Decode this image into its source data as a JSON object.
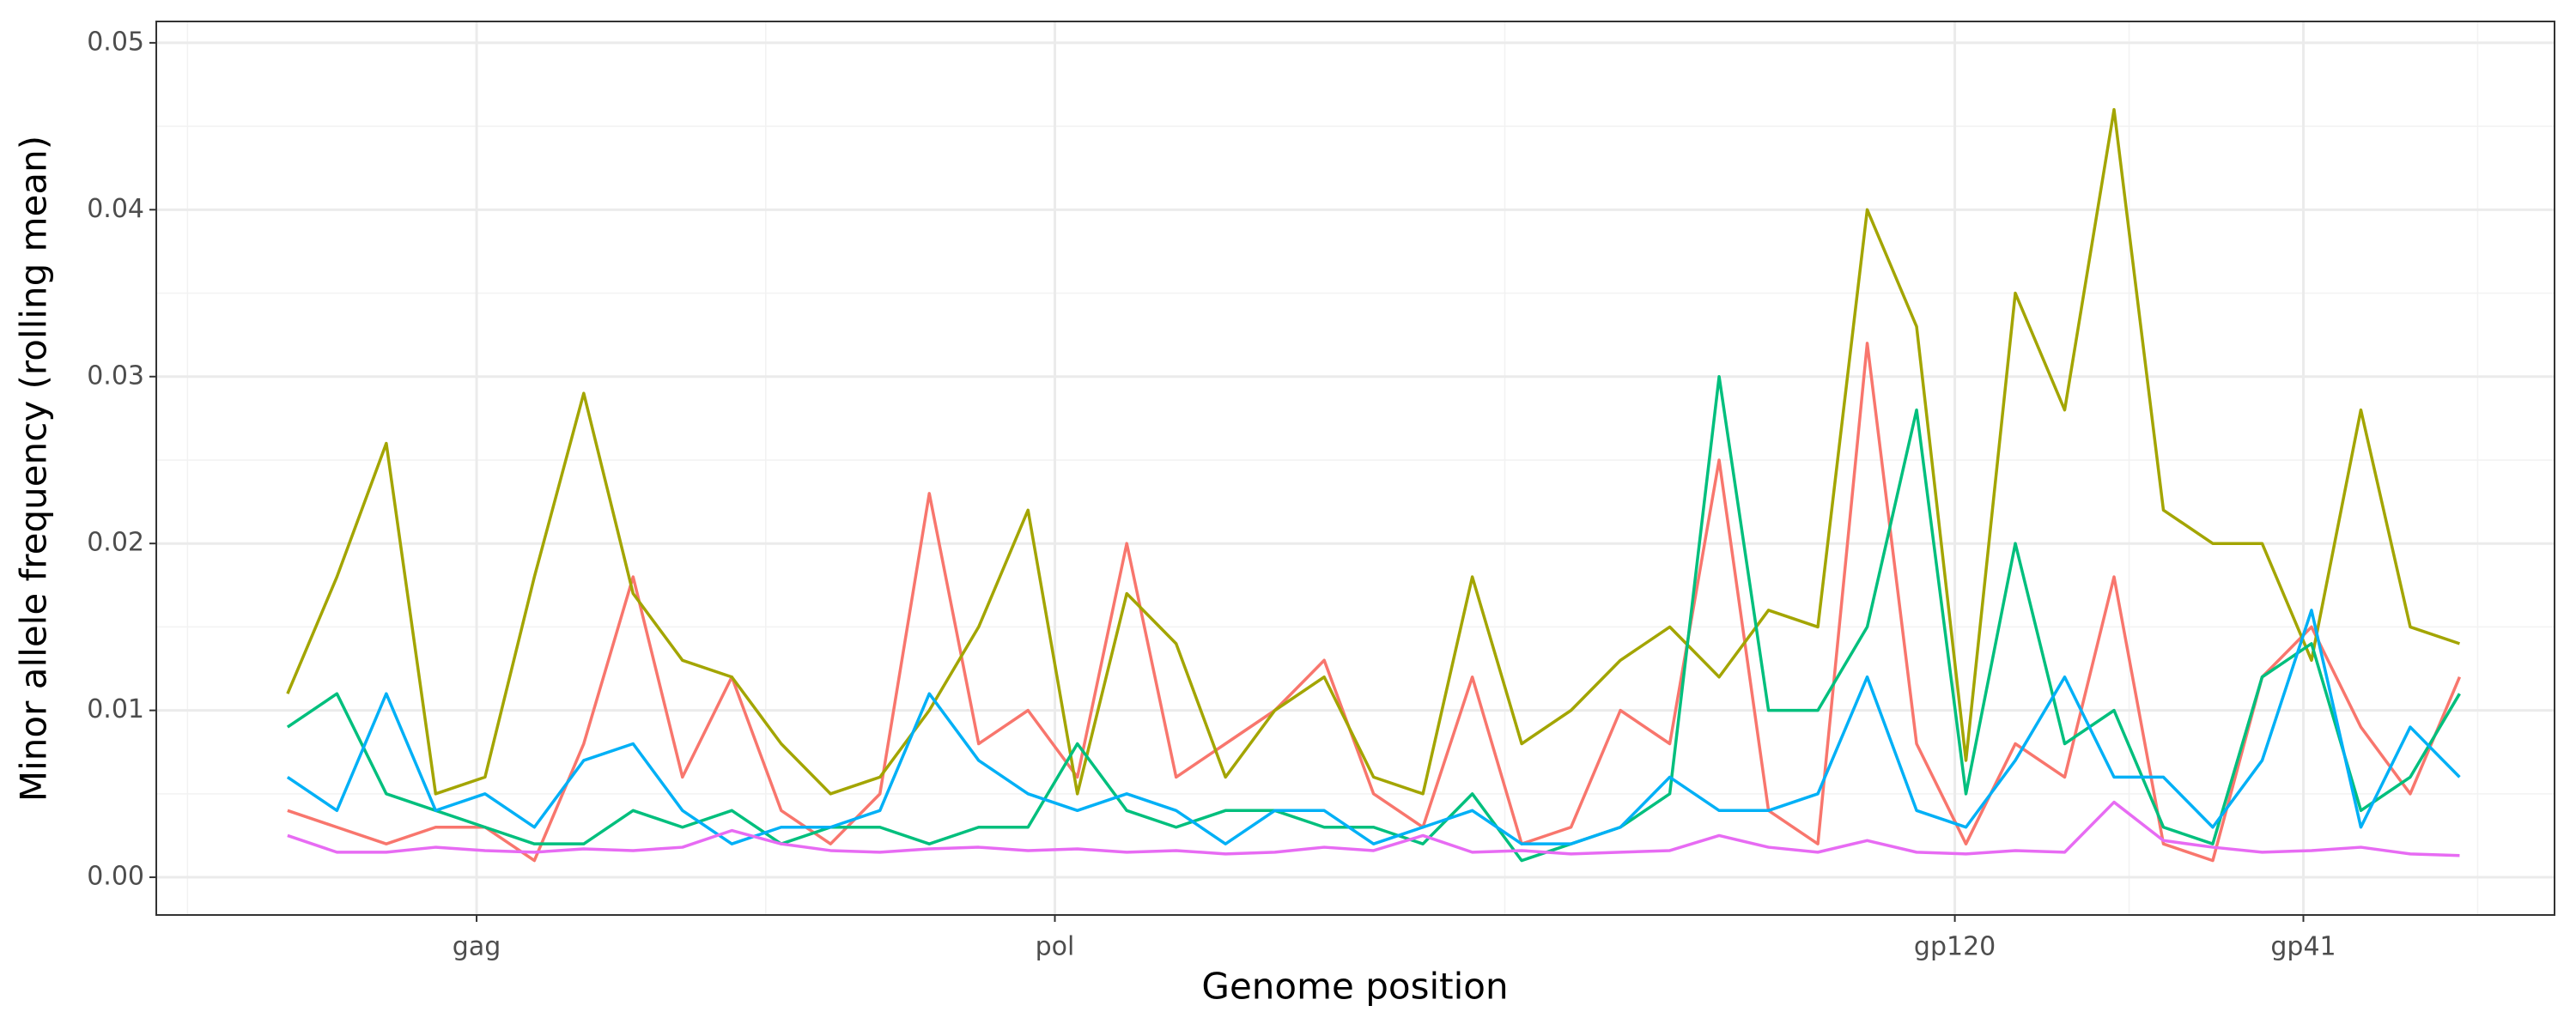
{
  "chart_data": {
    "type": "line",
    "xlabel": "Genome position",
    "ylabel": "Minor allele frequency (rolling mean)",
    "xlim": [
      360,
      9202
    ],
    "ylim": [
      -0.00226,
      0.05128
    ],
    "xticks": [
      {
        "value": 1541,
        "label": "gag"
      },
      {
        "value": 3673,
        "label": "pol"
      },
      {
        "value": 6991,
        "label": "gp120"
      },
      {
        "value": 8276,
        "label": "gp41"
      }
    ],
    "yticks": [
      {
        "value": 0,
        "label": "0.00"
      },
      {
        "value": 0.01,
        "label": "0.01"
      },
      {
        "value": 0.02,
        "label": "0.02"
      },
      {
        "value": 0.03,
        "label": "0.03"
      },
      {
        "value": 0.04,
        "label": "0.04"
      },
      {
        "value": 0.05,
        "label": "0.05"
      }
    ],
    "grid": true,
    "x": [
      844,
      1026,
      1208,
      1390,
      1572,
      1754,
      1936,
      2118,
      2300,
      2482,
      2664,
      2846,
      3028,
      3210,
      3392,
      3574,
      3756,
      3938,
      4120,
      4302,
      4484,
      4666,
      4848,
      5030,
      5212,
      5394,
      5576,
      5758,
      5940,
      6122,
      6304,
      6486,
      6668,
      6850,
      7032,
      7214,
      7396,
      7578,
      7760,
      7942,
      8124,
      8306,
      8488,
      8670,
      8852
    ],
    "series": [
      {
        "color": "#F8766D",
        "values": [
          0.004,
          0.003,
          0.002,
          0.003,
          0.003,
          0.001,
          0.008,
          0.018,
          0.006,
          0.012,
          0.004,
          0.002,
          0.005,
          0.023,
          0.008,
          0.01,
          0.006,
          0.02,
          0.006,
          0.008,
          0.01,
          0.013,
          0.005,
          0.003,
          0.012,
          0.002,
          0.003,
          0.01,
          0.008,
          0.025,
          0.004,
          0.002,
          0.032,
          0.008,
          0.002,
          0.008,
          0.006,
          0.018,
          0.002,
          0.001,
          0.012,
          0.015,
          0.009,
          0.005,
          0.012
        ]
      },
      {
        "color": "#A3A500",
        "values": [
          0.011,
          0.018,
          0.026,
          0.005,
          0.006,
          0.018,
          0.029,
          0.017,
          0.013,
          0.012,
          0.008,
          0.005,
          0.006,
          0.01,
          0.015,
          0.022,
          0.005,
          0.017,
          0.014,
          0.006,
          0.01,
          0.012,
          0.006,
          0.005,
          0.018,
          0.008,
          0.01,
          0.013,
          0.015,
          0.012,
          0.016,
          0.015,
          0.04,
          0.033,
          0.007,
          0.035,
          0.028,
          0.046,
          0.022,
          0.02,
          0.02,
          0.013,
          0.028,
          0.015,
          0.014
        ]
      },
      {
        "color": "#00BF7D",
        "values": [
          0.009,
          0.011,
          0.005,
          0.004,
          0.003,
          0.002,
          0.002,
          0.004,
          0.003,
          0.004,
          0.002,
          0.003,
          0.003,
          0.002,
          0.003,
          0.003,
          0.008,
          0.004,
          0.003,
          0.004,
          0.004,
          0.003,
          0.003,
          0.002,
          0.005,
          0.001,
          0.002,
          0.003,
          0.005,
          0.03,
          0.01,
          0.01,
          0.015,
          0.028,
          0.005,
          0.02,
          0.008,
          0.01,
          0.003,
          0.002,
          0.012,
          0.014,
          0.004,
          0.006,
          0.011
        ]
      },
      {
        "color": "#00B0F6",
        "values": [
          0.006,
          0.004,
          0.011,
          0.004,
          0.005,
          0.003,
          0.007,
          0.008,
          0.004,
          0.002,
          0.003,
          0.003,
          0.004,
          0.011,
          0.007,
          0.005,
          0.004,
          0.005,
          0.004,
          0.002,
          0.004,
          0.004,
          0.002,
          0.003,
          0.004,
          0.002,
          0.002,
          0.003,
          0.006,
          0.004,
          0.004,
          0.005,
          0.012,
          0.004,
          0.003,
          0.007,
          0.012,
          0.006,
          0.006,
          0.003,
          0.007,
          0.016,
          0.003,
          0.009,
          0.006
        ]
      },
      {
        "color": "#E76BF3",
        "values": [
          0.0025,
          0.0015,
          0.0015,
          0.0018,
          0.0016,
          0.0015,
          0.0017,
          0.0016,
          0.0018,
          0.0028,
          0.002,
          0.0016,
          0.0015,
          0.0017,
          0.0018,
          0.0016,
          0.0017,
          0.0015,
          0.0016,
          0.0014,
          0.0015,
          0.0018,
          0.0016,
          0.0025,
          0.0015,
          0.0016,
          0.0014,
          0.0015,
          0.0016,
          0.0025,
          0.0018,
          0.0015,
          0.0022,
          0.0015,
          0.0014,
          0.0016,
          0.0015,
          0.0045,
          0.0022,
          0.0018,
          0.0015,
          0.0016,
          0.0018,
          0.0014,
          0.0013
        ]
      }
    ]
  }
}
